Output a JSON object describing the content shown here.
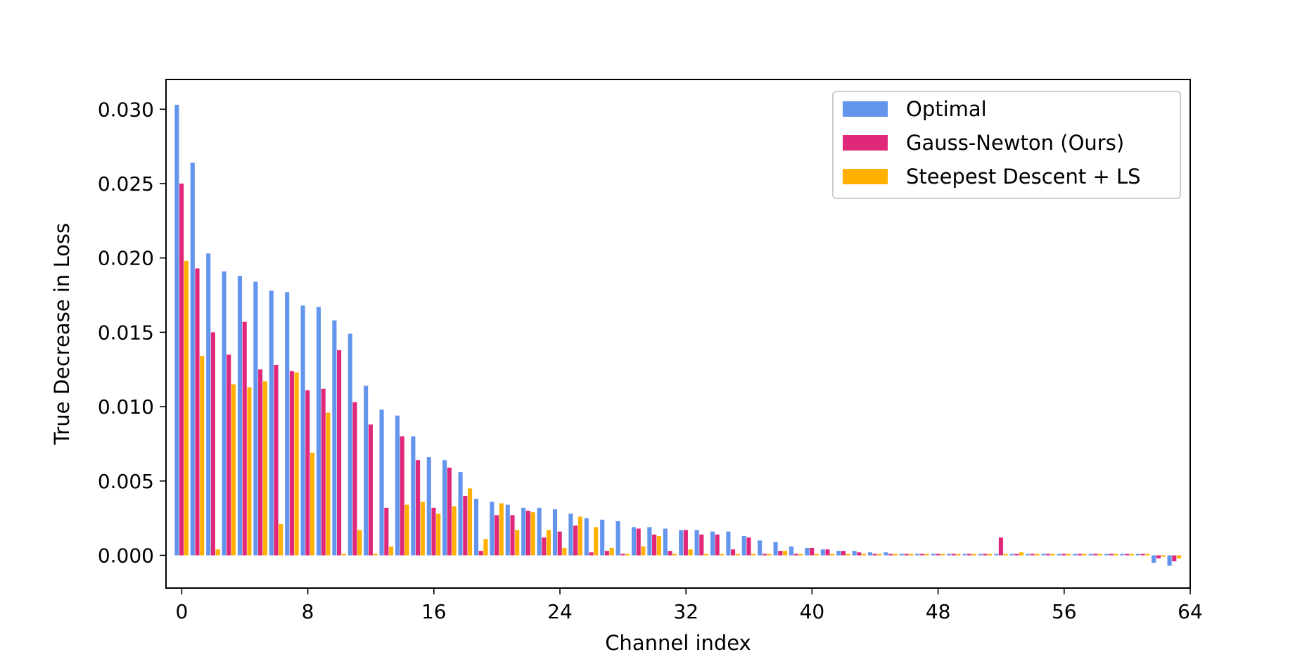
{
  "chart_data": {
    "type": "bar",
    "xlabel": "Channel index",
    "ylabel": "True Decrease in Loss",
    "xlim": [
      -1,
      64
    ],
    "ylim": [
      -0.0022,
      0.032
    ],
    "xticks": [
      "0",
      "8",
      "16",
      "24",
      "32",
      "40",
      "48",
      "56",
      "64"
    ],
    "yticks": [
      "0.000",
      "0.005",
      "0.010",
      "0.015",
      "0.020",
      "0.025",
      "0.030"
    ],
    "legend_position": "top-right",
    "grid": false,
    "categories": [
      0,
      1,
      2,
      3,
      4,
      5,
      6,
      7,
      8,
      9,
      10,
      11,
      12,
      13,
      14,
      15,
      16,
      17,
      18,
      19,
      20,
      21,
      22,
      23,
      24,
      25,
      26,
      27,
      28,
      29,
      30,
      31,
      32,
      33,
      34,
      35,
      36,
      37,
      38,
      39,
      40,
      41,
      42,
      43,
      44,
      45,
      46,
      47,
      48,
      49,
      50,
      51,
      52,
      53,
      54,
      55,
      56,
      57,
      58,
      59,
      60,
      61,
      62,
      63
    ],
    "series": [
      {
        "name": "Optimal",
        "color": "#6495ed",
        "values": [
          0.0303,
          0.0264,
          0.0203,
          0.0191,
          0.0188,
          0.0184,
          0.0178,
          0.0177,
          0.0168,
          0.0167,
          0.0158,
          0.0149,
          0.0114,
          0.0098,
          0.0094,
          0.008,
          0.0066,
          0.0064,
          0.0056,
          0.0038,
          0.0036,
          0.0034,
          0.0032,
          0.0032,
          0.0031,
          0.0028,
          0.0025,
          0.0024,
          0.0023,
          0.0019,
          0.0019,
          0.0018,
          0.0017,
          0.0017,
          0.0016,
          0.0016,
          0.0013,
          0.001,
          0.0009,
          0.0006,
          0.0005,
          0.0004,
          0.0003,
          0.0003,
          0.0002,
          0.0002,
          0.0001,
          0.0001,
          0.0001,
          0.0001,
          0.0001,
          0.0001,
          0.0001,
          0.0001,
          0.0001,
          0.0001,
          0.0001,
          0.0001,
          0.0001,
          0.0001,
          0.0001,
          0.0001,
          -0.0005,
          -0.0007
        ]
      },
      {
        "name": "Gauss-Newton (Ours)",
        "color": "#e0287a",
        "values": [
          0.025,
          0.0193,
          0.015,
          0.0135,
          0.0157,
          0.0125,
          0.0128,
          0.0124,
          0.0111,
          0.0112,
          0.0138,
          0.0103,
          0.0088,
          0.0032,
          0.008,
          0.0064,
          0.0032,
          0.0059,
          0.004,
          0.0003,
          0.0027,
          0.0027,
          0.003,
          0.0012,
          0.0016,
          0.002,
          0.0002,
          0.0003,
          0.0001,
          0.0018,
          0.0014,
          0.0003,
          0.0017,
          0.0014,
          0.0014,
          0.0004,
          0.0012,
          0.0001,
          0.0003,
          0.0001,
          0.0005,
          0.0004,
          0.0003,
          0.0002,
          0.0001,
          0.0001,
          0.0001,
          0.0001,
          0.0001,
          0.0001,
          0.0001,
          0.0001,
          0.0012,
          0.0001,
          0.0001,
          0.0001,
          0.0001,
          0.0001,
          0.0001,
          0.0001,
          0.0001,
          0.0001,
          -0.0002,
          -0.0004
        ]
      },
      {
        "name": "Steepest Descent + LS",
        "color": "#ffb000",
        "values": [
          0.0198,
          0.0134,
          0.0004,
          0.0115,
          0.0113,
          0.0117,
          0.0021,
          0.0123,
          0.0069,
          0.0096,
          0.0001,
          0.0017,
          0.0001,
          0.0006,
          0.0034,
          0.0036,
          0.0028,
          0.0033,
          0.0045,
          0.0011,
          0.0035,
          0.0017,
          0.0029,
          0.0017,
          0.0005,
          0.0026,
          0.0019,
          0.0005,
          0.0001,
          0.0006,
          0.0013,
          0.0001,
          0.0004,
          0.0001,
          0.0001,
          0.0001,
          0.0001,
          0.0001,
          0.0003,
          0.0001,
          0.0001,
          0.0001,
          0.0001,
          0.0001,
          0.0001,
          0.0001,
          0.0001,
          0.0001,
          0.0001,
          0.0001,
          0.0001,
          0.0001,
          0.0001,
          0.0002,
          0.0001,
          0.0001,
          0.0001,
          0.0001,
          0.0001,
          0.0001,
          0.0001,
          0.0001,
          -0.0001,
          -0.0002
        ]
      }
    ]
  }
}
